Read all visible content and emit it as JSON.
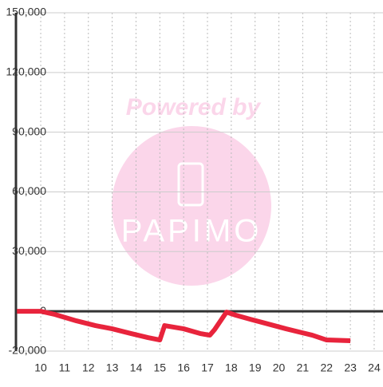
{
  "chart_data": {
    "type": "line",
    "watermark": "Powered by",
    "logo_text": "PAPIMO",
    "series": [
      {
        "color": "#e8243c",
        "x": [
          9,
          10,
          10.6,
          11.5,
          12.3,
          13,
          13.8,
          14.5,
          15,
          15.2,
          16,
          16.7,
          17.1,
          17.3,
          17.8,
          18.2,
          18.8,
          19.3,
          20.3,
          21.4,
          22,
          23
        ],
        "values": [
          0,
          0,
          -1600,
          -4800,
          -7200,
          -8800,
          -11200,
          -13200,
          -14400,
          -7200,
          -8800,
          -11200,
          -12000,
          -9200,
          -400,
          -2000,
          -4000,
          -5600,
          -8800,
          -12000,
          -14400,
          -14800
        ]
      }
    ],
    "xlim": [
      8.96,
      24.37
    ],
    "xticks": [
      10,
      11,
      12,
      13,
      14,
      15,
      16,
      17,
      18,
      19,
      20,
      21,
      22,
      23,
      24
    ],
    "ylim": [
      -20000,
      150000
    ],
    "yticks": [
      {
        "value": -20000,
        "label": "-20,000"
      },
      0,
      {
        "value": 30000,
        "label": "30,000"
      },
      {
        "value": 60000,
        "label": "60,000"
      },
      {
        "value": 90000,
        "label": "90,000"
      },
      {
        "value": 120000,
        "label": "120,000"
      },
      {
        "value": 150000,
        "label": "150,000"
      }
    ],
    "grid": true
  }
}
